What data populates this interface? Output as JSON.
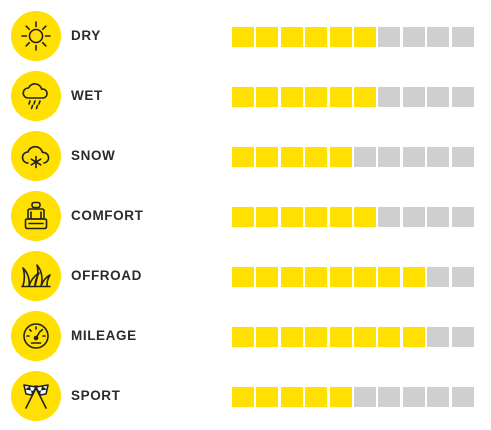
{
  "colors": {
    "accent": "#FFE000",
    "inactive": "#CFCFCF",
    "text": "#2B2B2B"
  },
  "segments_total": 10,
  "ratings": [
    {
      "icon": "sun-icon",
      "label": "DRY",
      "filled": 6
    },
    {
      "icon": "rain-cloud-icon",
      "label": "WET",
      "filled": 6
    },
    {
      "icon": "snow-cloud-icon",
      "label": "SNOW",
      "filled": 5
    },
    {
      "icon": "car-seat-icon",
      "label": "COMFORT",
      "filled": 6
    },
    {
      "icon": "grass-icon",
      "label": "OFFROAD",
      "filled": 8
    },
    {
      "icon": "speedometer-icon",
      "label": "MILEAGE",
      "filled": 8
    },
    {
      "icon": "checkered-flags-icon",
      "label": "SPORT",
      "filled": 5
    }
  ]
}
